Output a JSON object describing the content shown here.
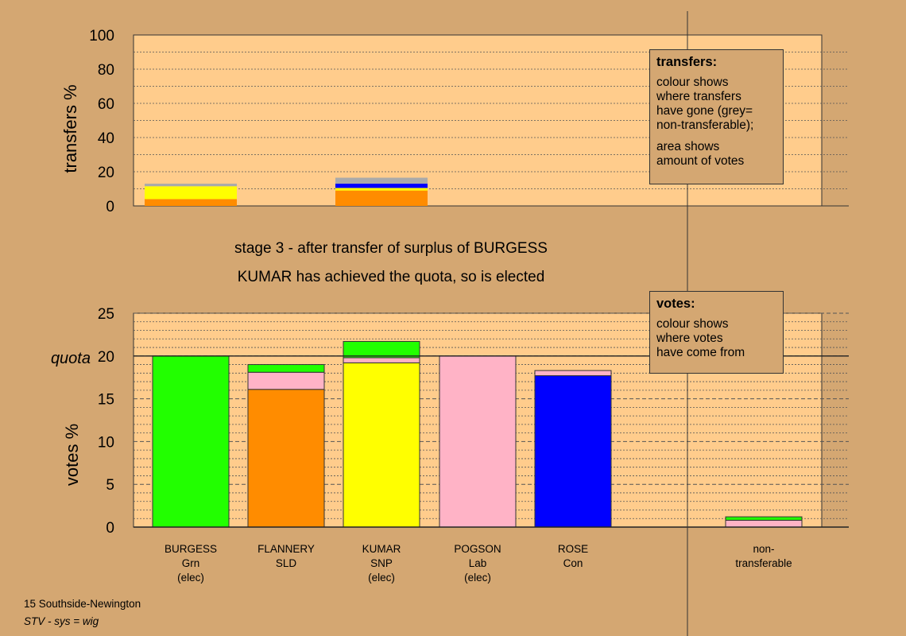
{
  "chart_data": [
    {
      "type": "bar",
      "stacked": true,
      "ylabel": "transfers %",
      "ylim": [
        0,
        100
      ],
      "yticks": [
        0,
        20,
        40,
        60,
        80,
        100
      ],
      "grid": true,
      "categories": [
        "BURGESS",
        "FLANNERY",
        "KUMAR",
        "POGSON",
        "ROSE",
        "non-transferable"
      ],
      "stacks": [
        {
          "category": "BURGESS",
          "segments": [
            {
              "color": "#ff8c00",
              "value": 4
            },
            {
              "color": "#ffff00",
              "value": 7.5
            },
            {
              "color": "#aaaaaa",
              "value": 1.5
            }
          ]
        },
        {
          "category": "KUMAR",
          "segments": [
            {
              "color": "#ff8c00",
              "value": 9
            },
            {
              "color": "#ffff00",
              "value": 1.5
            },
            {
              "color": "#0000ff",
              "value": 2.5
            },
            {
              "color": "#aaaaaa",
              "value": 3.5
            }
          ]
        }
      ]
    },
    {
      "type": "bar",
      "stacked": true,
      "ylabel": "votes %",
      "ylim": [
        0,
        25
      ],
      "yticks": [
        0,
        5,
        10,
        15,
        20,
        25
      ],
      "quota": 20,
      "quota_label": "quota",
      "grid": true,
      "categories": [
        {
          "lines": [
            "BURGESS",
            "Grn",
            "(elec)"
          ]
        },
        {
          "lines": [
            "FLANNERY",
            "SLD"
          ]
        },
        {
          "lines": [
            "KUMAR",
            "SNP",
            "(elec)"
          ]
        },
        {
          "lines": [
            "POGSON",
            "Lab",
            "(elec)"
          ]
        },
        {
          "lines": [
            "ROSE",
            "Con"
          ]
        },
        {
          "lines": [
            "non-",
            "transferable"
          ]
        }
      ],
      "stacks": [
        {
          "category": "BURGESS",
          "segments": [
            {
              "color": "#22ff00",
              "value": 20
            }
          ]
        },
        {
          "category": "FLANNERY",
          "segments": [
            {
              "color": "#ff8c00",
              "value": 16.1
            },
            {
              "color": "#ffb3c6",
              "value": 2
            },
            {
              "color": "#22ff00",
              "value": 0.9
            }
          ]
        },
        {
          "category": "KUMAR",
          "segments": [
            {
              "color": "#ffff00",
              "value": 19.2
            },
            {
              "color": "#ffb3c6",
              "value": 0.6
            },
            {
              "color": "#22ff00",
              "value": 1.9
            }
          ]
        },
        {
          "category": "POGSON",
          "segments": [
            {
              "color": "#ffb3c6",
              "value": 20
            }
          ]
        },
        {
          "category": "ROSE",
          "segments": [
            {
              "color": "#0000ff",
              "value": 17.7
            },
            {
              "color": "#ffb3c6",
              "value": 0.6
            }
          ]
        },
        {
          "category": "non-transferable",
          "segments": [
            {
              "color": "#ffb3c6",
              "value": 0.8
            },
            {
              "color": "#22ff00",
              "value": 0.4
            }
          ]
        }
      ]
    }
  ],
  "stage_text": "stage 3 - after transfer of surplus of BURGESS",
  "elected_text": "KUMAR has achieved the quota, so is elected",
  "transfers_legend": {
    "title": "transfers:",
    "lines1": [
      "colour shows",
      "where transfers",
      "have gone (grey=",
      "non-transferable);"
    ],
    "lines2": [
      "area shows",
      "amount of votes"
    ]
  },
  "votes_legend": {
    "title": "votes:",
    "lines": [
      "colour shows",
      "where votes",
      "have come from"
    ]
  },
  "footer": {
    "line1": "15 Southside-Newington",
    "line2": "STV - sys = wig"
  },
  "colors": {
    "background": "#d4a772",
    "plot_area": "#ffcc8c",
    "green": "#22ff00",
    "orange": "#ff8c00",
    "yellow": "#ffff00",
    "pink": "#ffb3c6",
    "blue": "#0000ff",
    "grey": "#aaaaaa"
  }
}
